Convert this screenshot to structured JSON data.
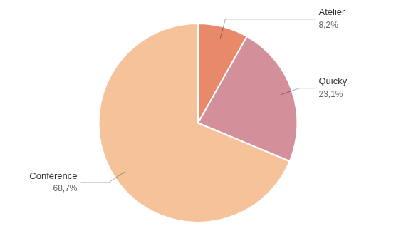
{
  "chart_data": {
    "type": "pie",
    "categories": [
      "Atelier",
      "Quicky",
      "Conférence"
    ],
    "values": [
      8.2,
      23.1,
      68.7
    ],
    "value_labels": [
      "8,2%",
      "23,1%",
      "68,7%"
    ],
    "colors": [
      "#e8896a",
      "#d4909a",
      "#f5c29a"
    ],
    "data_labels": true
  }
}
